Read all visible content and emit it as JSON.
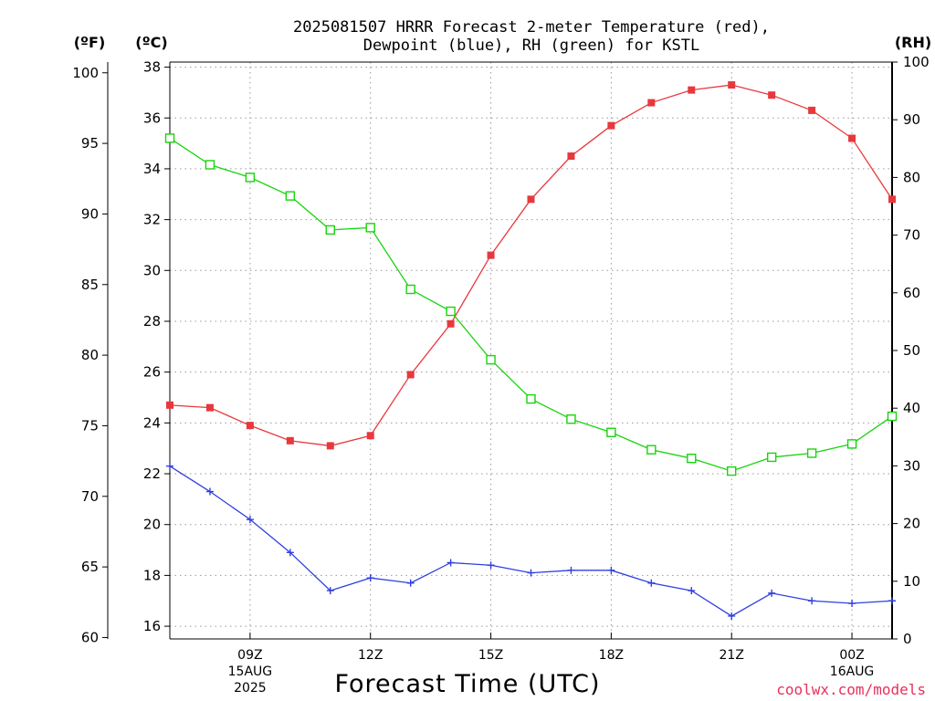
{
  "chart_data": {
    "type": "line",
    "title_lines": [
      "2025081507 HRRR Forecast 2-meter Temperature (red),",
      "Dewpoint (blue), RH (green) for KSTL"
    ],
    "axis_units": {
      "fahrenheit": "(ºF)",
      "celsius": "(ºC)",
      "rh": "(RH)"
    },
    "xlabel": "Forecast Time (UTC)",
    "credit": "coolwx.com/models",
    "x_ticks": [
      {
        "hour": 9,
        "lines": [
          "09Z",
          "15AUG",
          "2025"
        ]
      },
      {
        "hour": 12,
        "lines": [
          "12Z"
        ]
      },
      {
        "hour": 15,
        "lines": [
          "15Z"
        ]
      },
      {
        "hour": 18,
        "lines": [
          "18Z"
        ]
      },
      {
        "hour": 21,
        "lines": [
          "21Z"
        ]
      },
      {
        "hour": 24,
        "lines": [
          "00Z",
          "16AUG"
        ]
      }
    ],
    "x_range": [
      7,
      25
    ],
    "y_celsius_range": [
      15.5,
      38.2
    ],
    "y_celsius_ticks": [
      16,
      18,
      20,
      22,
      24,
      26,
      28,
      30,
      32,
      34,
      36,
      38
    ],
    "y_fahrenheit_ticks": [
      60,
      65,
      70,
      75,
      80,
      85,
      90,
      95,
      100
    ],
    "y_rh_range": [
      0,
      100
    ],
    "y_rh_ticks": [
      0,
      10,
      20,
      30,
      40,
      50,
      60,
      70,
      80,
      90,
      100
    ],
    "grid": true,
    "x_hours": [
      7,
      8,
      9,
      10,
      11,
      12,
      13,
      14,
      15,
      16,
      17,
      18,
      19,
      20,
      21,
      22,
      23,
      24,
      25
    ],
    "series": [
      {
        "id": "temperature",
        "axis": "celsius",
        "color": "#e8383d",
        "marker": "filled-square",
        "values": [
          24.7,
          24.6,
          23.9,
          23.3,
          23.1,
          23.5,
          25.9,
          27.9,
          30.6,
          32.8,
          34.5,
          35.7,
          36.6,
          37.1,
          37.3,
          36.9,
          36.3,
          35.2,
          32.8
        ]
      },
      {
        "id": "dewpoint",
        "axis": "celsius",
        "color": "#2f3fe0",
        "marker": "plus",
        "values": [
          22.3,
          21.3,
          20.2,
          18.9,
          17.4,
          17.9,
          17.7,
          18.5,
          18.4,
          18.1,
          18.2,
          18.2,
          17.7,
          17.4,
          16.4,
          17.3,
          17.0,
          16.9,
          17.0
        ]
      },
      {
        "id": "rh",
        "axis": "rh",
        "color": "#18d40e",
        "marker": "open-square",
        "values": [
          86.8,
          82.2,
          80.0,
          76.8,
          70.9,
          71.3,
          60.6,
          56.8,
          48.4,
          41.6,
          38.1,
          35.8,
          32.8,
          31.3,
          29.1,
          31.5,
          32.2,
          33.8,
          38.6
        ]
      }
    ]
  }
}
